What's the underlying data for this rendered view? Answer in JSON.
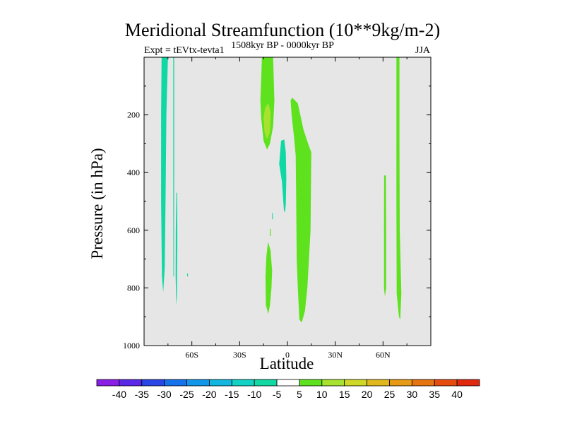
{
  "chart_data": {
    "type": "contour",
    "title": "Meridional Streamfunction (10**9kg/m-2)",
    "subtitle_left": "Expt = tEVtx-tevta1",
    "subtitle_center": "1508kyr BP - 0000kyr BP",
    "subtitle_right": "JJA",
    "xlabel": "Latitude",
    "ylabel": "Pressure (in hPa)",
    "xlim": [
      -90,
      90
    ],
    "ylim": [
      0,
      1000
    ],
    "y_inverted": true,
    "x_ticks": [
      {
        "value": -60,
        "label": "60S"
      },
      {
        "value": -30,
        "label": "30S"
      },
      {
        "value": 0,
        "label": "0"
      },
      {
        "value": 30,
        "label": "30N"
      },
      {
        "value": 60,
        "label": "60N"
      }
    ],
    "y_ticks": [
      {
        "value": 200,
        "label": "200"
      },
      {
        "value": 400,
        "label": "400"
      },
      {
        "value": 600,
        "label": "600"
      },
      {
        "value": 800,
        "label": "800"
      },
      {
        "value": 1000,
        "label": "1000"
      }
    ],
    "background_color": "#e6e6e6",
    "regions": [
      {
        "name": "neg-south-polar-main",
        "level": -10,
        "color": "#10d8a4",
        "points": [
          [
            -79,
            0
          ],
          [
            -75,
            0
          ],
          [
            -76,
            200
          ],
          [
            -76.5,
            500
          ],
          [
            -77,
            730
          ],
          [
            -78,
            815
          ],
          [
            -78.8,
            760
          ],
          [
            -79.3,
            500
          ],
          [
            -79.3,
            200
          ]
        ]
      },
      {
        "name": "neg-south-polar-line",
        "level": -10,
        "color": "#10d8a4",
        "points": [
          [
            -71.7,
            0
          ],
          [
            -71.1,
            0
          ],
          [
            -71.1,
            400
          ],
          [
            -71.2,
            760
          ],
          [
            -71.6,
            760
          ],
          [
            -71.7,
            400
          ]
        ]
      },
      {
        "name": "neg-south-polar-lower",
        "level": -10,
        "color": "#10d8a4",
        "points": [
          [
            -69.7,
            470
          ],
          [
            -69.2,
            470
          ],
          [
            -69.1,
            650
          ],
          [
            -69.4,
            830
          ],
          [
            -69.8,
            860
          ],
          [
            -70.2,
            760
          ],
          [
            -70.1,
            600
          ]
        ]
      },
      {
        "name": "neg-south-polar-speck",
        "level": -10,
        "color": "#10d8a4",
        "points": [
          [
            -63,
            750
          ],
          [
            -62.5,
            750
          ],
          [
            -62.4,
            760
          ],
          [
            -62.9,
            760
          ]
        ]
      },
      {
        "name": "pos-south-subtropic-upper",
        "level": 5,
        "color": "#5ee21e",
        "points": [
          [
            -16,
            0
          ],
          [
            -9,
            0
          ],
          [
            -8.2,
            150
          ],
          [
            -9,
            240
          ],
          [
            -11,
            300
          ],
          [
            -12.8,
            320
          ],
          [
            -15,
            290
          ],
          [
            -16.5,
            210
          ],
          [
            -17,
            150
          ]
        ]
      },
      {
        "name": "pos-south-subtropic-core",
        "level": 10,
        "color": "#a6e22e",
        "points": [
          [
            -14,
            175
          ],
          [
            -12,
            160
          ],
          [
            -10.5,
            190
          ],
          [
            -11,
            260
          ],
          [
            -12.8,
            285
          ],
          [
            -14.4,
            260
          ],
          [
            -15,
            210
          ]
        ]
      },
      {
        "name": "neg-equatorial",
        "level": -10,
        "color": "#10d8a4",
        "points": [
          [
            -4,
            290
          ],
          [
            -2,
            285
          ],
          [
            -1,
            330
          ],
          [
            -0.7,
            420
          ],
          [
            -1,
            510
          ],
          [
            -1.6,
            540
          ],
          [
            -2.2,
            530
          ],
          [
            -3.5,
            430
          ],
          [
            -5.2,
            370
          ]
        ]
      },
      {
        "name": "neg-equatorial-speck",
        "level": -10,
        "color": "#10d8a4",
        "points": [
          [
            -9.6,
            540
          ],
          [
            -9.2,
            540
          ],
          [
            -9.1,
            562
          ],
          [
            -9.6,
            562
          ]
        ]
      },
      {
        "name": "pos-north-main",
        "level": 5,
        "color": "#5ee21e",
        "points": [
          [
            3,
            140
          ],
          [
            6.5,
            160
          ],
          [
            10,
            250
          ],
          [
            13,
            300
          ],
          [
            15,
            330
          ],
          [
            14.5,
            600
          ],
          [
            12.5,
            800
          ],
          [
            11,
            880
          ],
          [
            9,
            920
          ],
          [
            7.5,
            910
          ],
          [
            6.5,
            800
          ],
          [
            5.8,
            700
          ],
          [
            5.5,
            500
          ],
          [
            5.2,
            340
          ],
          [
            4,
            270
          ],
          [
            2.6,
            200
          ],
          [
            2,
            150
          ]
        ]
      },
      {
        "name": "pos-south-subtropic-lower",
        "level": 5,
        "color": "#5ee21e",
        "points": [
          [
            -12.2,
            640
          ],
          [
            -10.6,
            670
          ],
          [
            -9.6,
            740
          ],
          [
            -10,
            800
          ],
          [
            -11,
            860
          ],
          [
            -12,
            890
          ],
          [
            -13.5,
            860
          ],
          [
            -13.8,
            760
          ],
          [
            -13.2,
            690
          ]
        ]
      },
      {
        "name": "pos-south-speck",
        "level": 5,
        "color": "#5ee21e",
        "points": [
          [
            -11.1,
            595
          ],
          [
            -10.6,
            595
          ],
          [
            -10.5,
            620
          ],
          [
            -11.1,
            620
          ]
        ]
      },
      {
        "name": "pos-north-polar-main",
        "level": 5,
        "color": "#5ee21e",
        "points": [
          [
            68.4,
            0
          ],
          [
            70.3,
            0
          ],
          [
            70.3,
            300
          ],
          [
            70.5,
            600
          ],
          [
            71.5,
            820
          ],
          [
            70.8,
            910
          ],
          [
            70,
            900
          ],
          [
            68.6,
            820
          ],
          [
            68.4,
            500
          ]
        ]
      },
      {
        "name": "pos-north-polar-lower",
        "level": 5,
        "color": "#5ee21e",
        "points": [
          [
            60.7,
            410
          ],
          [
            61.8,
            410
          ],
          [
            62,
            600
          ],
          [
            62,
            800
          ],
          [
            61.2,
            830
          ],
          [
            60.6,
            800
          ],
          [
            60.6,
            600
          ]
        ]
      }
    ],
    "colorbar": {
      "boundaries": [
        "-40",
        "-35",
        "-30",
        "-25",
        "-20",
        "-15",
        "-10",
        "-5",
        "5",
        "10",
        "15",
        "20",
        "25",
        "30",
        "35",
        "40"
      ],
      "colors": [
        "#8a1ee6",
        "#5a28e6",
        "#2a46e6",
        "#1672ea",
        "#1296ea",
        "#12b6de",
        "#12d2c4",
        "#12d8a4",
        "#ffffff",
        "#5ee21e",
        "#a6e22e",
        "#cfd826",
        "#e0b81e",
        "#e69a16",
        "#e67410",
        "#e64c10",
        "#e02a10"
      ]
    }
  }
}
